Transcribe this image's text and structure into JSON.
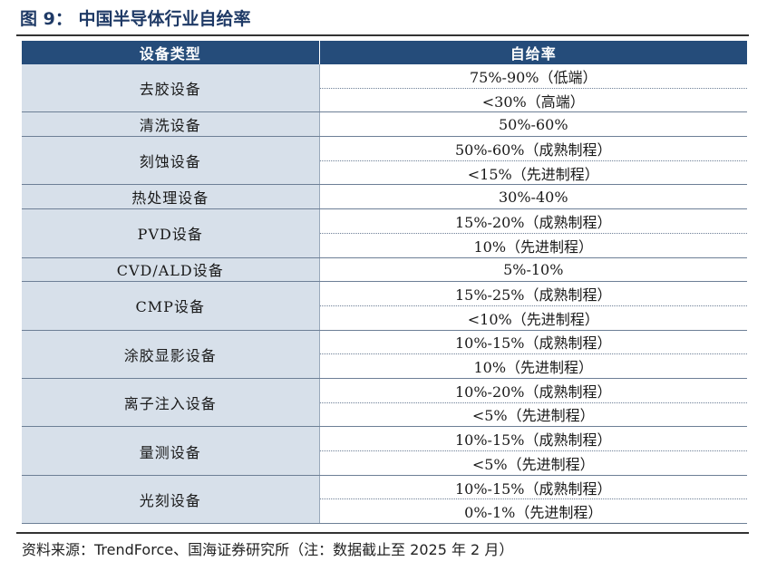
{
  "figure": {
    "title": "图 9： 中国半导体行业自给率"
  },
  "table": {
    "headers": [
      "设备类型",
      "自给率"
    ],
    "groups": [
      {
        "category": "去胶设备",
        "rates": [
          "75%-90%（低端）",
          "<30%（高端）"
        ]
      },
      {
        "category": "清洗设备",
        "rates": [
          "50%-60%"
        ]
      },
      {
        "category": "刻蚀设备",
        "rates": [
          "50%-60%（成熟制程）",
          "<15%（先进制程）"
        ]
      },
      {
        "category": "热处理设备",
        "rates": [
          "30%-40%"
        ]
      },
      {
        "category": "PVD设备",
        "rates": [
          "15%-20%（成熟制程）",
          "10%（先进制程）"
        ]
      },
      {
        "category": "CVD/ALD设备",
        "rates": [
          "5%-10%"
        ]
      },
      {
        "category": "CMP设备",
        "rates": [
          "15%-25%（成熟制程）",
          "<10%（先进制程）"
        ]
      },
      {
        "category": "涂胶显影设备",
        "rates": [
          "10%-15%（成熟制程）",
          "10%（先进制程）"
        ]
      },
      {
        "category": "离子注入设备",
        "rates": [
          "10%-20%（成熟制程）",
          "<5%（先进制程）"
        ]
      },
      {
        "category": "量测设备",
        "rates": [
          "10%-15%（成熟制程）",
          "<5%（先进制程）"
        ]
      },
      {
        "category": "光刻设备",
        "rates": [
          "10%-15%（成熟制程）",
          "0%-1%（先进制程）"
        ]
      }
    ]
  },
  "footer": {
    "source": "资料来源：TrendForce、国海证券研究所（注：数据截止至 2025 年 2 月）"
  }
}
